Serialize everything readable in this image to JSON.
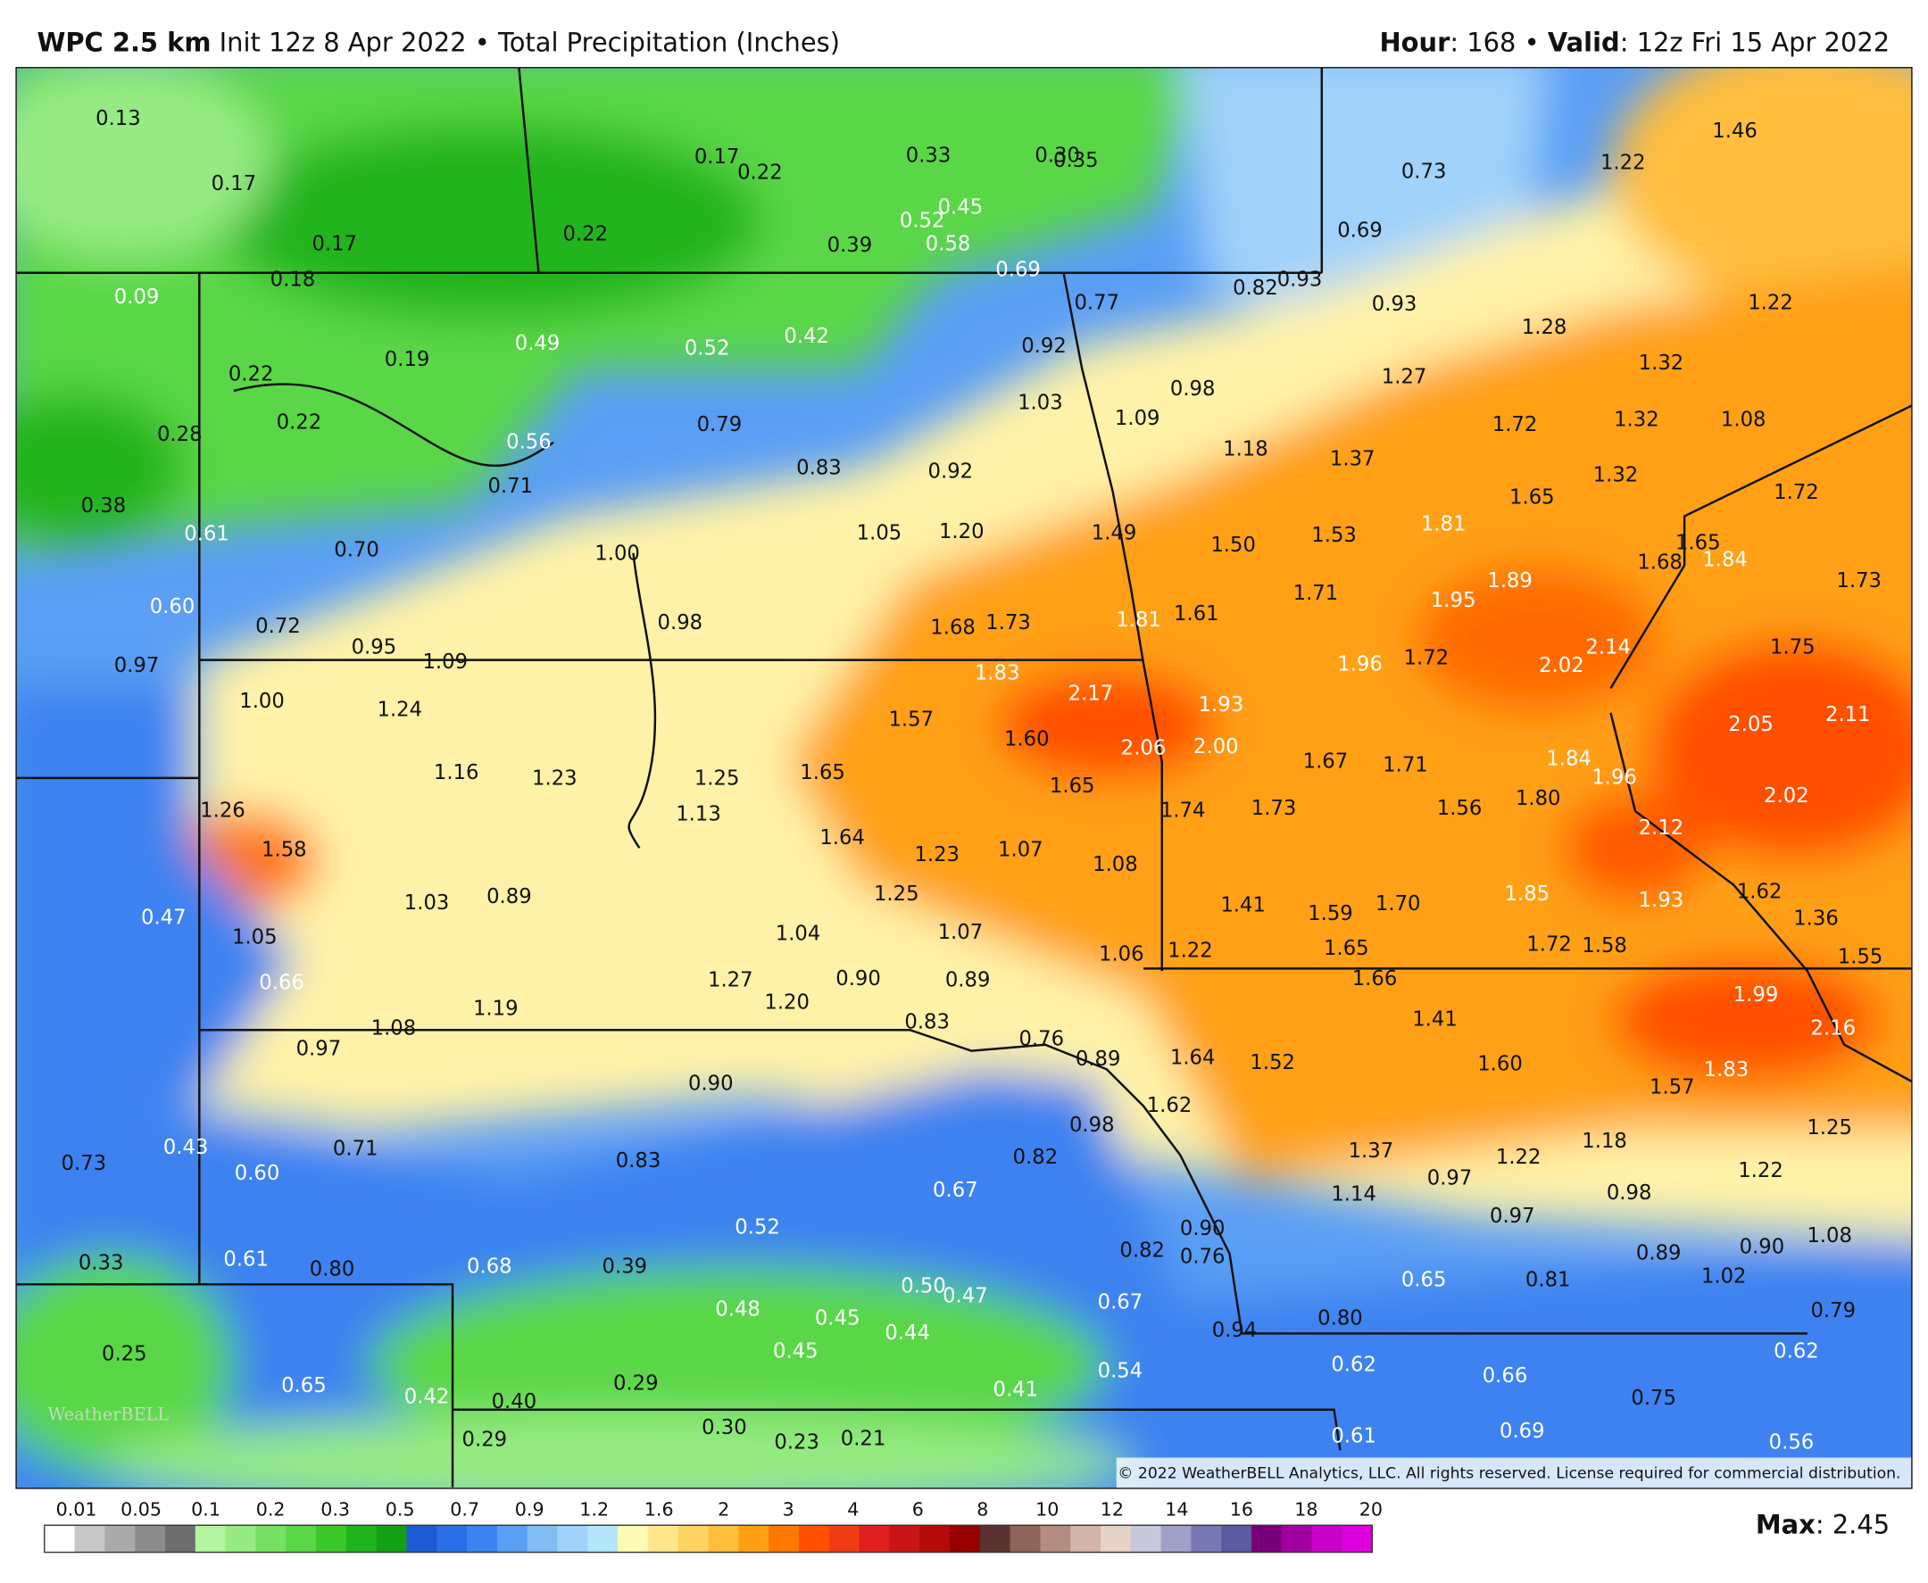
{
  "header": {
    "model": "WPC 2.5 km",
    "init": "Init 12z 8 Apr 2022 • Total Precipitation (Inches)",
    "hour_key": "Hour",
    "hour_value": ": 168 • ",
    "valid_key": "Valid",
    "valid_value": ": 12z Fri 15 Apr 2022"
  },
  "map": {
    "labels": [
      "0.13",
      "0.17",
      "0.17",
      "0.18",
      "0.09",
      "0.17",
      "0.22",
      "0.22",
      "0.33",
      "0.30",
      "0.35",
      "0.39",
      "0.45",
      "0.52",
      "0.58",
      "0.69",
      "0.73",
      "0.69",
      "0.77",
      "0.82",
      "0.93",
      "0.93",
      "1.46",
      "1.22",
      "1.28",
      "1.22",
      "1.32",
      "1.27",
      "0.92",
      "0.98",
      "1.03",
      "1.09",
      "1.18",
      "1.37",
      "1.72",
      "1.32",
      "1.08",
      "1.32",
      "1.65",
      "1.72",
      "0.22",
      "0.19",
      "0.49",
      "0.52",
      "0.42",
      "0.22",
      "0.28",
      "0.56",
      "0.79",
      "0.83",
      "0.92",
      "0.71",
      "0.38",
      "0.61",
      "0.70",
      "1.05",
      "1.20",
      "1.49",
      "1.50",
      "1.53",
      "1.81",
      "1.65",
      "1.68",
      "1.84",
      "1.73",
      "1.00",
      "0.60",
      "0.72",
      "0.98",
      "1.68",
      "1.73",
      "1.81",
      "1.61",
      "1.71",
      "1.95",
      "1.89",
      "0.97",
      "0.95",
      "1.09",
      "1.83",
      "1.96",
      "1.72",
      "2.02",
      "2.14",
      "1.75",
      "1.00",
      "1.24",
      "2.17",
      "1.93",
      "1.57",
      "2.05",
      "2.11",
      "1.16",
      "1.23",
      "1.25",
      "1.65",
      "1.60",
      "2.06",
      "2.00",
      "1.67",
      "1.71",
      "1.84",
      "1.96",
      "2.02",
      "1.26",
      "1.13",
      "1.65",
      "1.74",
      "1.73",
      "1.56",
      "1.80",
      "1.58",
      "1.64",
      "1.23",
      "1.07",
      "1.08",
      "2.12",
      "0.47",
      "1.03",
      "0.89",
      "1.25",
      "1.05",
      "1.04",
      "1.07",
      "1.41",
      "1.59",
      "1.70",
      "1.85",
      "1.93",
      "1.62",
      "1.36",
      "0.66",
      "1.06",
      "1.22",
      "1.65",
      "1.72",
      "1.58",
      "1.55",
      "1.27",
      "0.90",
      "0.89",
      "1.66",
      "1.99",
      "2.16",
      "1.08",
      "1.19",
      "1.20",
      "0.83",
      "1.41",
      "0.97",
      "0.76",
      "0.89",
      "1.64",
      "1.52",
      "1.60",
      "1.83",
      "1.57",
      "0.90",
      "1.62",
      "0.98",
      "1.25",
      "0.43",
      "0.71",
      "0.73",
      "0.60",
      "0.83",
      "0.82",
      "1.37",
      "1.22",
      "1.18",
      "1.22",
      "0.67",
      "1.14",
      "0.97",
      "0.98",
      "0.97",
      "0.52",
      "0.90",
      "1.08",
      "0.33",
      "0.61",
      "0.80",
      "0.68",
      "0.39",
      "0.82",
      "0.76",
      "0.89",
      "0.90",
      "1.02",
      "0.65",
      "0.81",
      "0.50",
      "0.47",
      "0.48",
      "0.45",
      "0.67",
      "0.44",
      "0.94",
      "0.80",
      "0.79",
      "0.45",
      "0.25",
      "0.62",
      "0.66",
      "0.62",
      "0.54",
      "0.65",
      "0.42",
      "0.40",
      "0.29",
      "0.41",
      "0.75",
      "0.30",
      "0.23",
      "0.21",
      "0.29",
      "0.61",
      "0.69",
      "0.56"
    ],
    "copyright": "© 2022 WeatherBELL Analytics, LLC. All rights reserved. License required for commercial distribution.",
    "logo": "WeatherBELL"
  },
  "colorbar": {
    "ticks": [
      "0.01",
      "0.05",
      "0.1",
      "0.2",
      "0.3",
      "0.5",
      "0.7",
      "0.9",
      "1.2",
      "1.6",
      "2",
      "3",
      "4",
      "6",
      "8",
      "10",
      "12",
      "14",
      "16",
      "18",
      "20"
    ]
  },
  "footer": {
    "max_key": "Max",
    "max_value": ": 2.45"
  }
}
